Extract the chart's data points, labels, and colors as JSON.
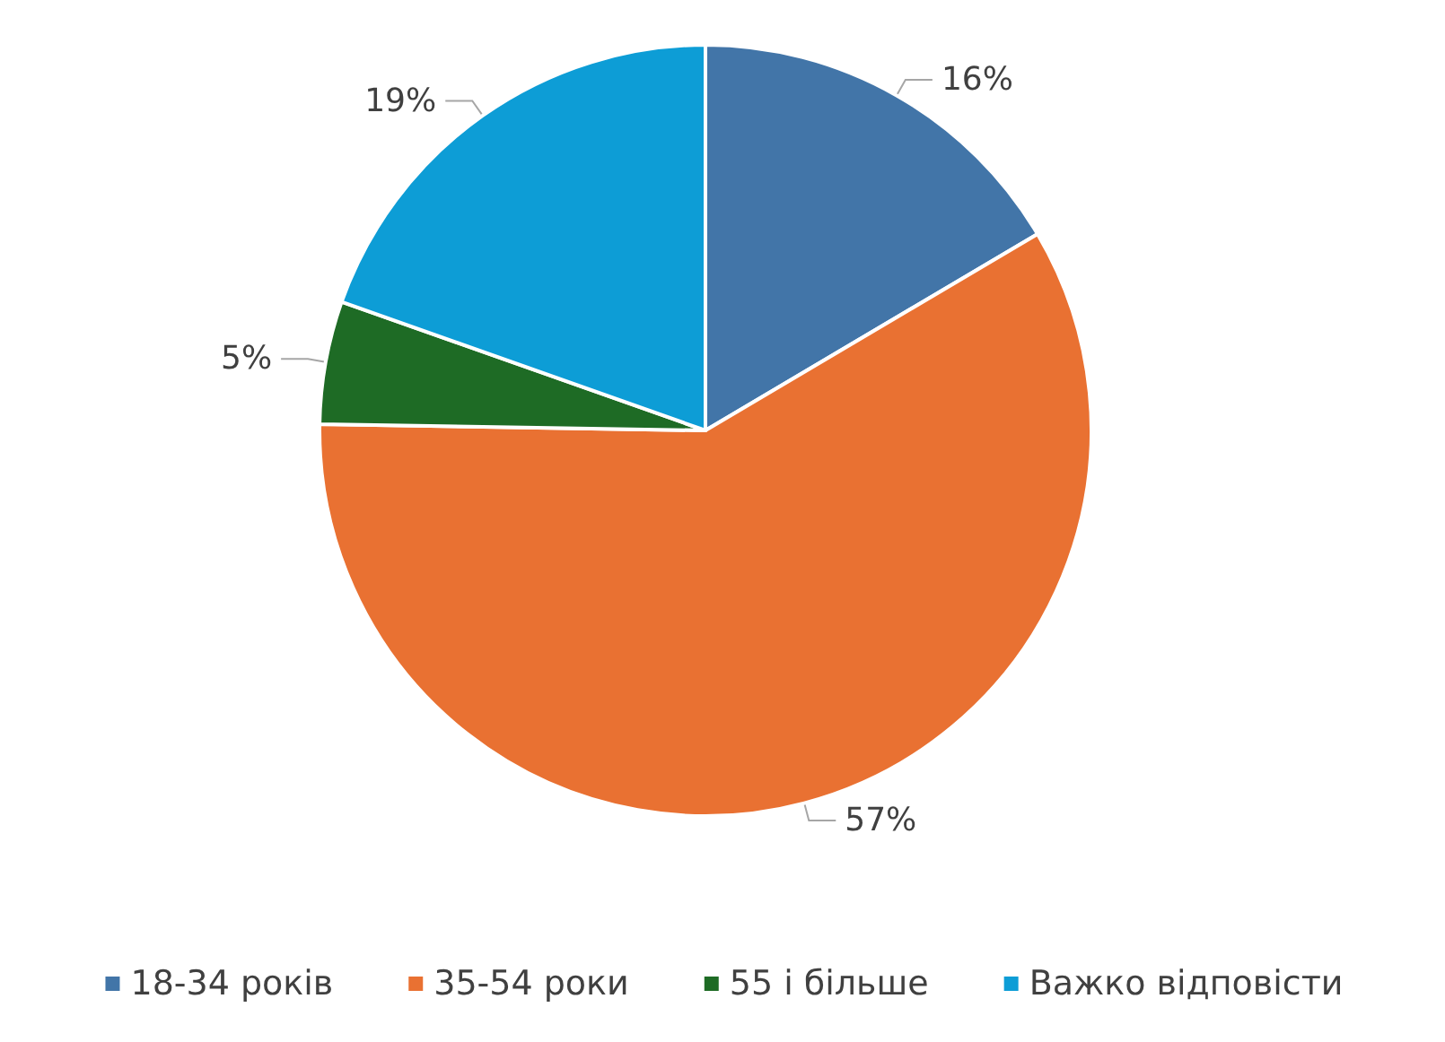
{
  "chart_data": {
    "type": "pie",
    "categories": [
      "18-34 років",
      "35-54 роки",
      "55 і більше",
      "Важко відповісти"
    ],
    "values": [
      16,
      57,
      5,
      19
    ],
    "colors": [
      "#4275a8",
      "#e97132",
      "#1e6b25",
      "#0d9dd6"
    ],
    "value_labels": [
      "16%",
      "57%",
      "5%",
      "19%"
    ],
    "legend": "bottom"
  }
}
